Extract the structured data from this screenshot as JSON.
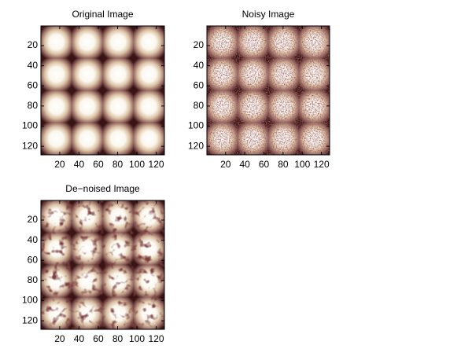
{
  "chart_data": [
    {
      "type": "image",
      "title": "Original Image",
      "colormap": "pink",
      "noise": "none",
      "xlim": [
        0.5,
        128.5
      ],
      "ylim": [
        0.5,
        128.5
      ],
      "xticks": [
        20,
        40,
        60,
        80,
        100,
        120
      ],
      "yticks": [
        20,
        40,
        60,
        80,
        100,
        120
      ]
    },
    {
      "type": "image",
      "title": "Noisy Image",
      "colormap": "pink",
      "noise": "heavy",
      "xlim": [
        0.5,
        128.5
      ],
      "ylim": [
        0.5,
        128.5
      ],
      "xticks": [
        20,
        40,
        60,
        80,
        100,
        120
      ],
      "yticks": [
        20,
        40,
        60,
        80,
        100,
        120
      ]
    },
    {
      "type": "image",
      "title": "De−noised Image",
      "colormap": "pink",
      "noise": "light",
      "xlim": [
        0.5,
        128.5
      ],
      "ylim": [
        0.5,
        128.5
      ],
      "xticks": [
        20,
        40,
        60,
        80,
        100,
        120
      ],
      "yticks": [
        20,
        40,
        60,
        80,
        100,
        120
      ]
    }
  ]
}
